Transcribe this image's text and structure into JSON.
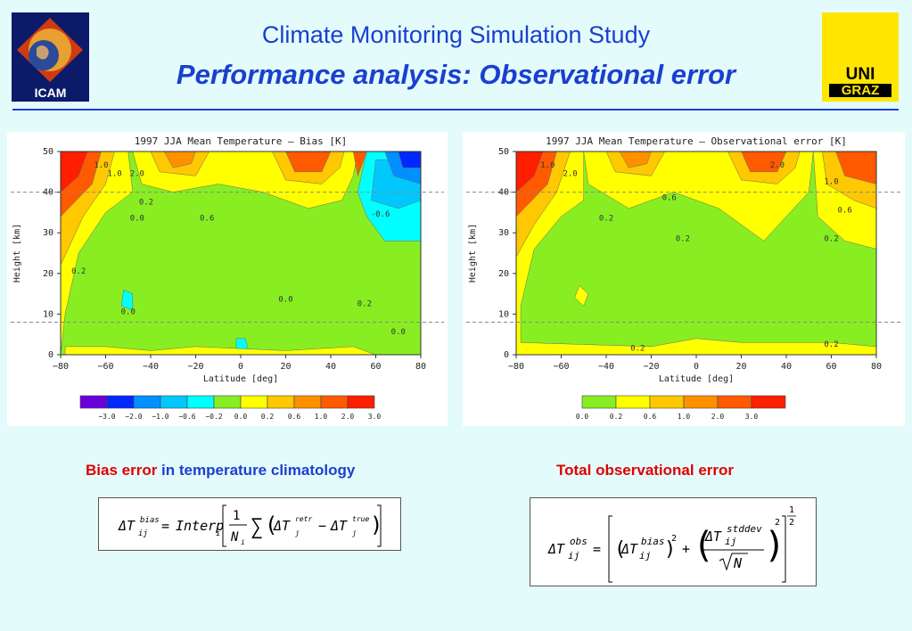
{
  "header": {
    "title": "Climate Monitoring Simulation Study",
    "subtitle": "Performance analysis: Observational error",
    "logo_left_text": "ICAM",
    "logo_right_line1": "UNI",
    "logo_right_line2": "GRAZ"
  },
  "colors": {
    "accent": "#1a3fd0",
    "caption_red": "#e00000",
    "background": "#e4fbfb"
  },
  "chart_data": [
    {
      "type": "heatmap",
      "title": "1997 JJA Mean Temperature – Bias [K]",
      "xlabel": "Latitude [deg]",
      "ylabel": "Height [km]",
      "xlim": [
        -80,
        80
      ],
      "ylim": [
        0,
        50
      ],
      "xticks": [
        -80,
        -60,
        -40,
        -20,
        0,
        20,
        40,
        60,
        80
      ],
      "yticks": [
        0,
        10,
        20,
        30,
        40,
        50
      ],
      "dashed_lines_y": [
        8,
        40
      ],
      "contour_labels": [
        "1.0",
        "2.0",
        "1.0",
        "0.2",
        "0.6",
        "0.0",
        "0.2",
        "0.0",
        "0.0",
        "0.2",
        "-0.6",
        "0.0"
      ],
      "colorbar": {
        "labels": [
          "-3.0",
          "-2.0",
          "-1.0",
          "-0.6",
          "-0.2",
          "0.0",
          "0.2",
          "0.6",
          "1.0",
          "2.0",
          "3.0"
        ],
        "colors": [
          "#6a00d8",
          "#0028ff",
          "#0090ff",
          "#00c8ff",
          "#00ffff",
          "#88ee22",
          "#ffff00",
          "#ffc800",
          "#ff9000",
          "#ff5a00",
          "#ff1e00"
        ]
      }
    },
    {
      "type": "heatmap",
      "title": "1997 JJA Mean Temperature – Observational error [K]",
      "xlabel": "Latitude [deg]",
      "ylabel": "Height [km]",
      "xlim": [
        -80,
        80
      ],
      "ylim": [
        0,
        50
      ],
      "xticks": [
        -80,
        -60,
        -40,
        -20,
        0,
        20,
        40,
        60,
        80
      ],
      "yticks": [
        0,
        10,
        20,
        30,
        40,
        50
      ],
      "dashed_lines_y": [
        8,
        40
      ],
      "contour_labels": [
        "1.0",
        "2.0",
        "2.0",
        "1.0",
        "0.6",
        "0.6",
        "0.2",
        "0.2",
        "0.2",
        "0.2",
        "0.2"
      ],
      "colorbar": {
        "labels": [
          "0.0",
          "0.2",
          "0.6",
          "1.0",
          "2.0",
          "3.0"
        ],
        "colors": [
          "#88ee22",
          "#ffff00",
          "#ffc800",
          "#ff9000",
          "#ff5a00",
          "#ff1e00"
        ]
      }
    }
  ],
  "captions": {
    "left_part1": "Bias error",
    "left_part2": " in temperature climatology",
    "right": "Total observational error"
  },
  "formulas": {
    "bias": {
      "lhs_T": "ΔT",
      "lhs_sup": "bias",
      "lhs_sub": "ij",
      "eq": "=",
      "interp": "Interp",
      "interp_sub": "i",
      "frac_num": "1",
      "frac_den_N": "N",
      "frac_den_sub": "i",
      "sum": "∑",
      "t1": "ΔT",
      "t1_sup": "retr",
      "t1_sub": "j",
      "minus": "−",
      "t2": "ΔT",
      "t2_sup": "true",
      "t2_sub": "j"
    },
    "obs": {
      "lhs_T": "ΔT",
      "lhs_sup": "obs",
      "lhs_sub": "ij",
      "eq": "=",
      "t1": "ΔT",
      "t1_sup": "bias",
      "t1_sub": "ij",
      "sq1": "2",
      "plus": "+",
      "t2": "ΔT",
      "t2_sup": "stddev",
      "t2_sub": "ij",
      "sqrtN": "N",
      "sq2": "2",
      "exp_num": "1",
      "exp_den": "2"
    }
  }
}
